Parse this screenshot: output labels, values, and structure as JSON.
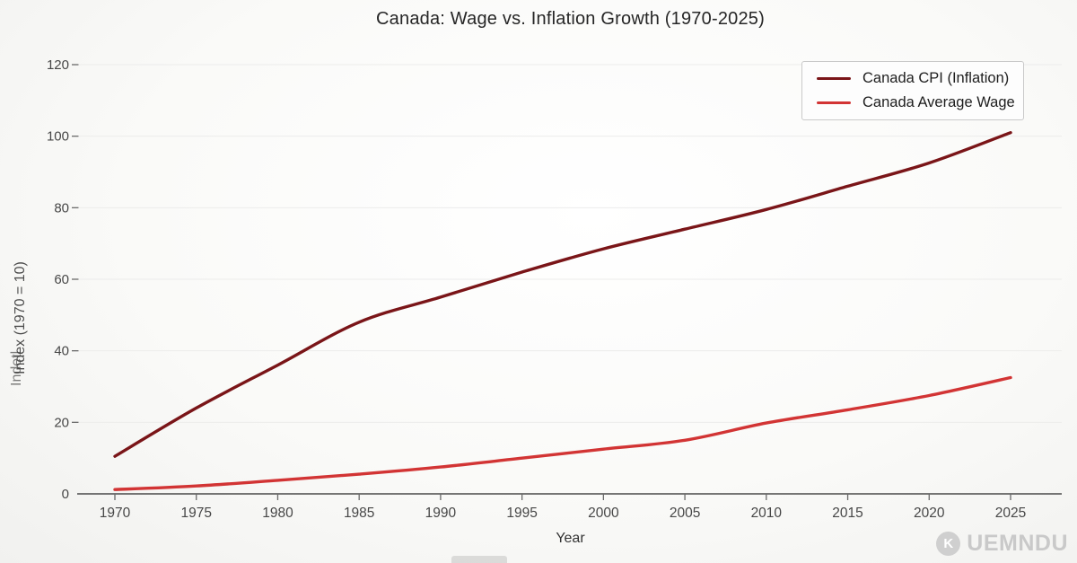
{
  "title": "Canada: Wage vs. Inflation Growth (1970-2025)",
  "chart_data": {
    "type": "line",
    "x": [
      1970,
      1975,
      1980,
      1985,
      1990,
      1995,
      2000,
      2005,
      2010,
      2015,
      2020,
      2025
    ],
    "series": [
      {
        "name": "Canada CPI (Inflation)",
        "color": "#7a1518",
        "values": [
          10.5,
          24,
          36,
          48,
          55,
          62,
          68.5,
          74,
          79.5,
          86,
          92.5,
          101
        ]
      },
      {
        "name": "Canada Average Wage",
        "color": "#d23434",
        "values": [
          1.2,
          2.2,
          3.8,
          5.5,
          7.5,
          10,
          12.5,
          15,
          19.8,
          23.5,
          27.5,
          32.5
        ]
      }
    ],
    "xlabel": "Year",
    "ylabel": "Index (1970 = 10)",
    "ylabel_glitch": "Indetl",
    "xticks": [
      1970,
      1975,
      1980,
      1985,
      1990,
      1995,
      2000,
      2005,
      2010,
      2015,
      2020,
      2025
    ],
    "yticks": [
      0,
      20,
      40,
      60,
      80,
      100,
      120
    ],
    "ylim": [
      0,
      120
    ],
    "grid": "horizontal-light",
    "legend_position": "top-right"
  },
  "watermark": {
    "icon_letter": "K",
    "text": "UEMNDU"
  },
  "colors": {
    "axis": "#4a4a4a",
    "tick": "#6a6a6a",
    "grid": "#ececeb",
    "tick_label": "#474747"
  }
}
